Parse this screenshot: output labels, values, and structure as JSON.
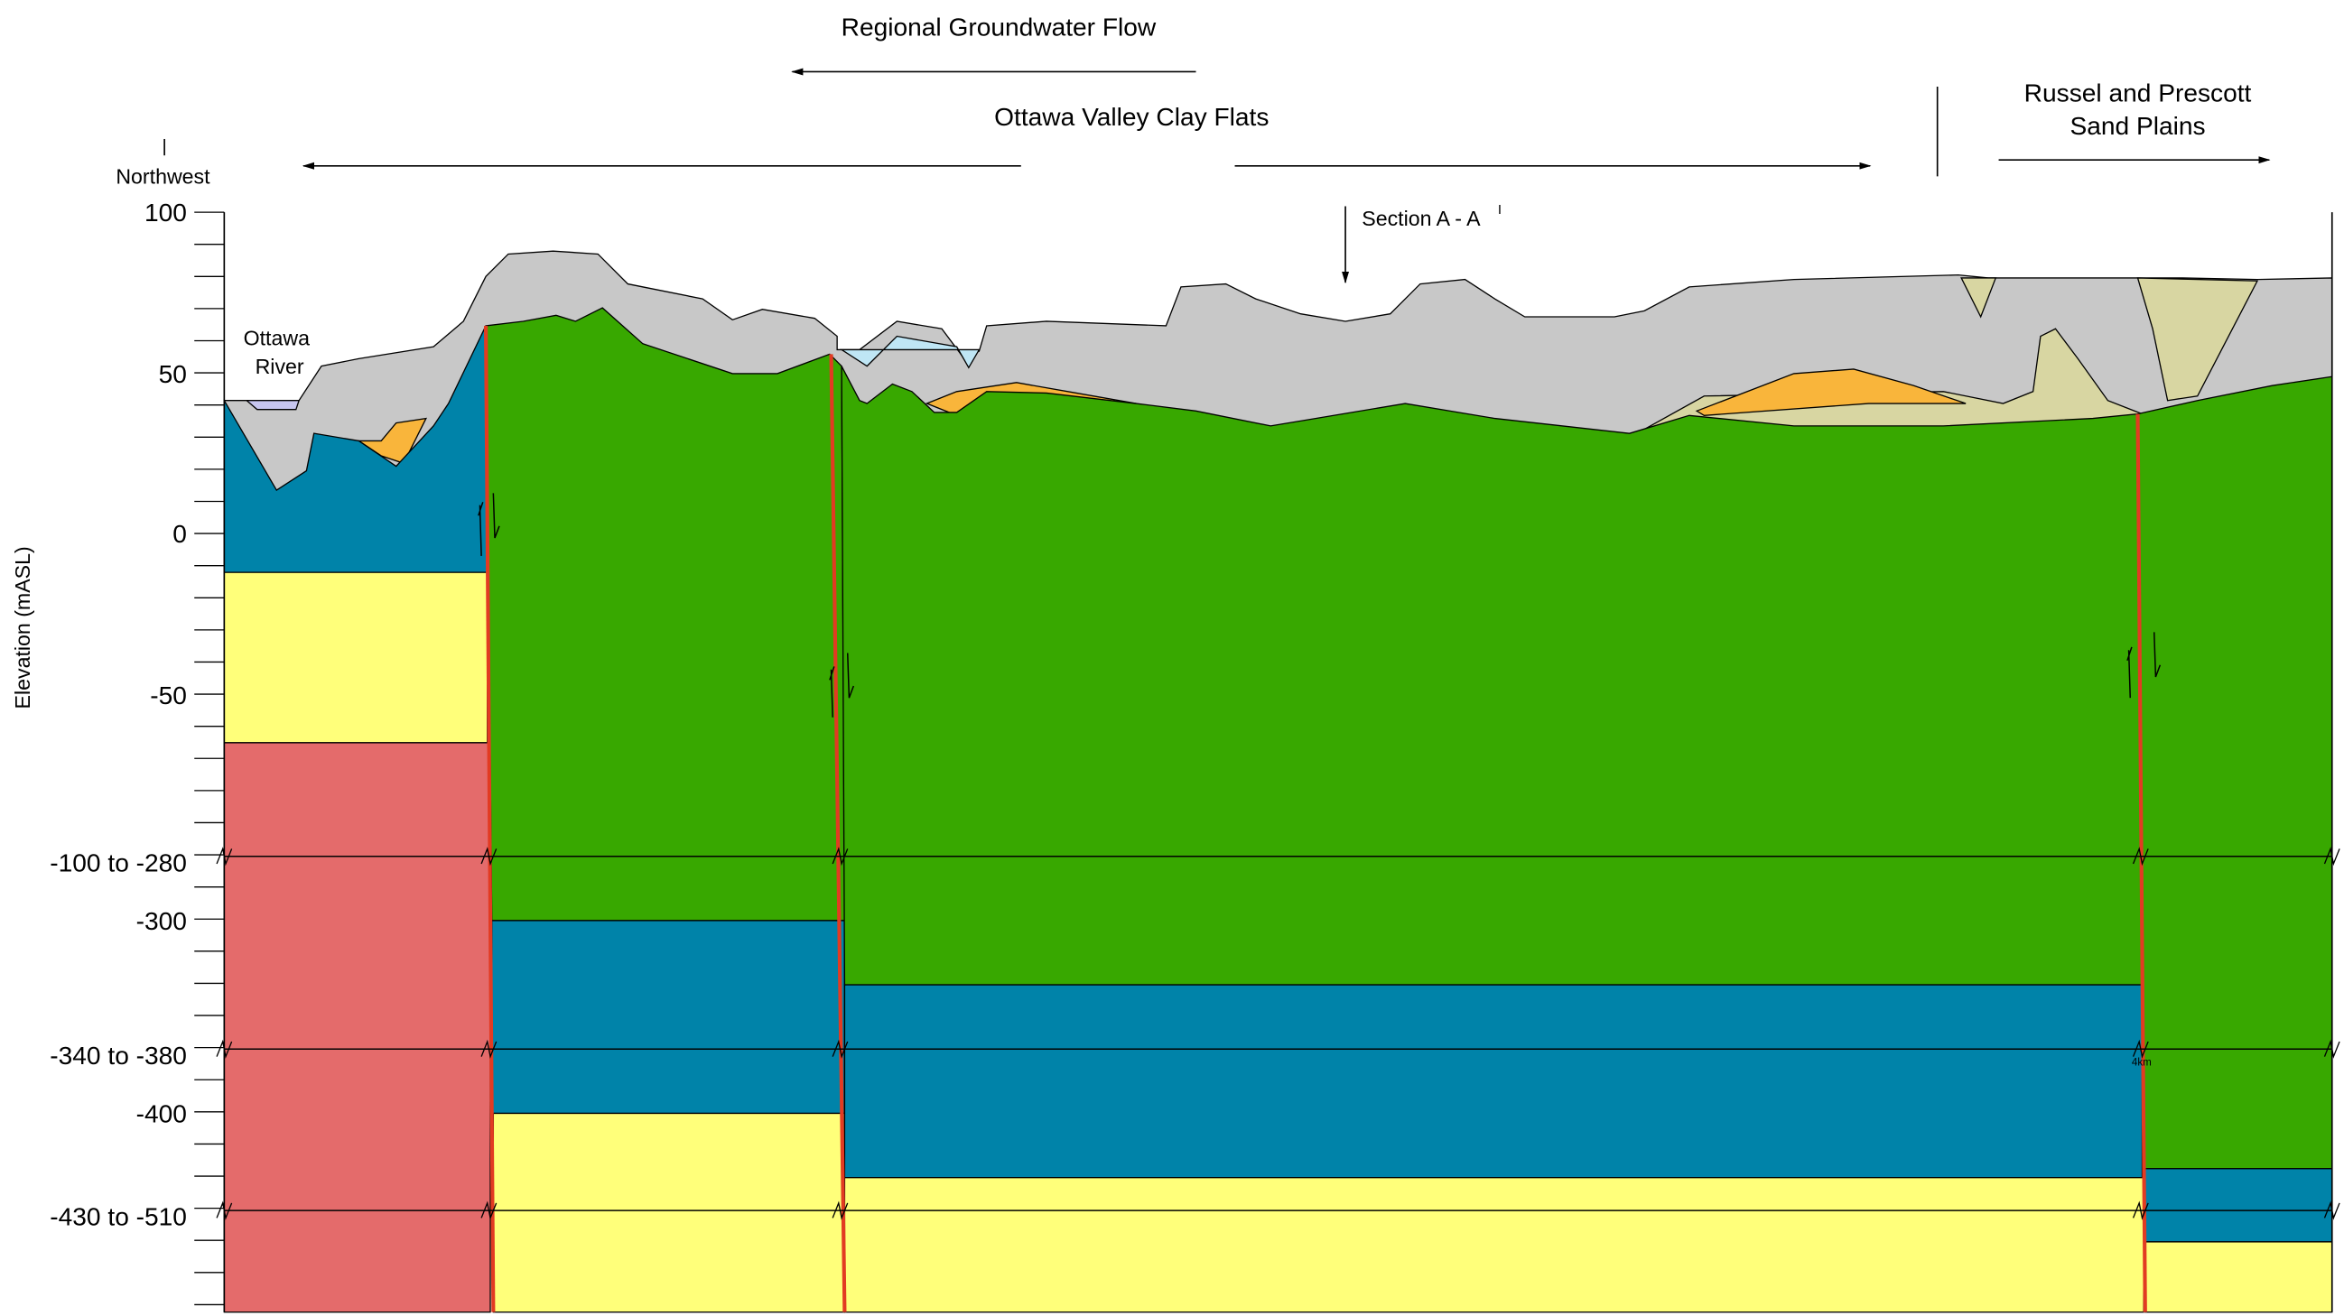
{
  "header": {
    "flow_label": "Regional Groundwater Flow",
    "clay_flats": "Ottawa Valley Clay Flats",
    "sand_plains": [
      "Russel and Prescott",
      "Sand Plains"
    ],
    "direction": "Northwest",
    "section_label": "Section A - A",
    "section_prime": "I"
  },
  "river_label": [
    "Ottawa",
    "River"
  ],
  "scale_label": "4km",
  "y_axis": {
    "title": "Elevation (mASL)",
    "ticks": [
      "100",
      "50",
      "0",
      "-50",
      "-100 to -280",
      "-300",
      "-340 to -380",
      "-400",
      "-430 to -510"
    ]
  }
}
